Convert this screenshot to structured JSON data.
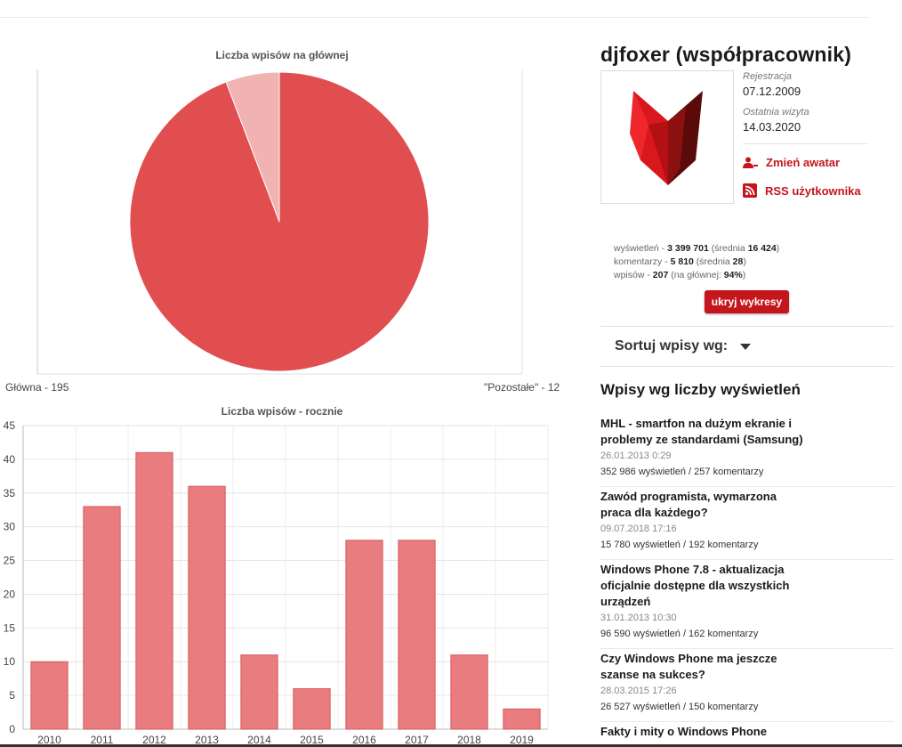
{
  "pie_chart": {
    "title": "Liczba wpisów na głównej",
    "chart_data": {
      "type": "pie",
      "title": "Liczba wpisów na głównej",
      "slices": [
        {
          "label": "Główna - 195",
          "name": "Główna",
          "value": 195,
          "color": "#e14e4f"
        },
        {
          "label": "\"Pozostałe\" - 12",
          "name": "Pozostałe",
          "value": 12,
          "color": "#f1b2b2"
        }
      ]
    }
  },
  "bar_chart": {
    "title": "Liczba wpisów - rocznie",
    "chart_data": {
      "type": "bar",
      "title": "Liczba wpisów - rocznie",
      "categories": [
        "2010",
        "2011",
        "2012",
        "2013",
        "2014",
        "2015",
        "2016",
        "2017",
        "2018",
        "2019"
      ],
      "values": [
        10,
        33,
        41,
        36,
        11,
        6,
        28,
        28,
        11,
        3
      ],
      "ylim": [
        0,
        45
      ],
      "yticks": [
        "0",
        "5",
        "10",
        "15",
        "20",
        "25",
        "30",
        "35",
        "40",
        "45"
      ],
      "grid": true,
      "color": "#e87c7e"
    }
  },
  "profile": {
    "username": "djfoxer (współpracownik)",
    "registration_label": "Rejestracja",
    "registration_date": "07.12.2009",
    "last_visit_label": "Ostatnia wizyta",
    "last_visit_date": "14.03.2020",
    "change_avatar": "Zmień awatar",
    "rss": "RSS użytkownika",
    "accent_color": "#c4161c"
  },
  "stats": {
    "views_label": "wyświetleń - ",
    "views": "3 399 701",
    "views_avg_label": " (średnia ",
    "views_avg": "16 424",
    "comments_label": "komentarzy - ",
    "comments": "5 810",
    "comments_avg_label": " (średnia ",
    "comments_avg": "28",
    "posts_label": "wpisów - ",
    "posts": "207",
    "posts_main_label": " (na głównej: ",
    "posts_main": "94%",
    "close_paren": ")"
  },
  "hide_button": "ukryj wykresy",
  "sort_label": "Sortuj wpisy wg:",
  "section_title": "Wpisy wg liczby wyświetleń",
  "posts": [
    {
      "title": "MHL - smartfon na dużym ekranie i problemy ze standardami (Samsung)",
      "date": "26.01.2013 0:29",
      "stats": "352 986 wyświetleń / 257 komentarzy"
    },
    {
      "title": "Zawód programista, wymarzona praca dla każdego?",
      "date": "09.07.2018 17:16",
      "stats": "15 780 wyświetleń / 192 komentarzy"
    },
    {
      "title": "Windows Phone 7.8 - aktualizacja oficjalnie dostępne dla wszystkich urządzeń",
      "date": "31.01.2013 10:30",
      "stats": "96 590 wyświetleń / 162 komentarzy"
    },
    {
      "title": "Czy Windows Phone ma jeszcze szanse na sukces?",
      "date": "28.03.2015 17:26",
      "stats": "26 527 wyświetleń / 150 komentarzy"
    },
    {
      "title": "Fakty i mity o Windows Phone",
      "date": "",
      "stats": ""
    }
  ]
}
